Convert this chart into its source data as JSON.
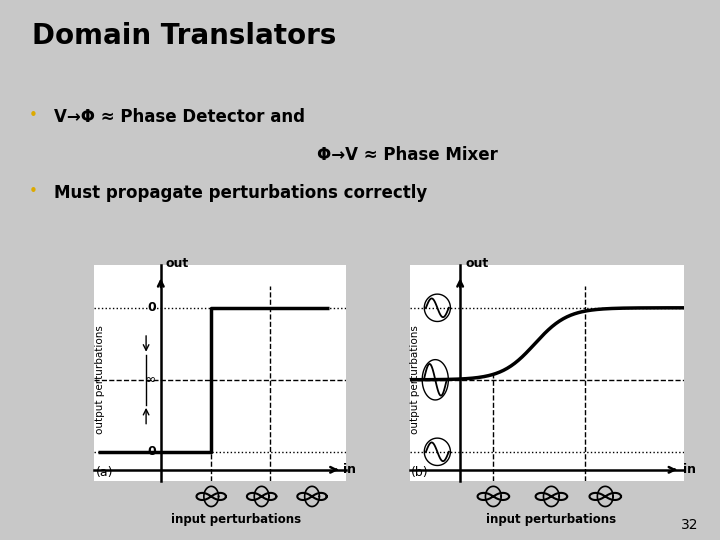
{
  "title": "Domain Translators",
  "bullet1_part1": "V→Φ ≈ Phase Detector and",
  "bullet1_part2": "Φ→V ≈ Phase Mixer",
  "bullet2": "Must propagate perturbations correctly",
  "background_color": "#c8c8c8",
  "plot_bg": "#ffffff",
  "text_color": "#000000",
  "title_color": "#000000",
  "bullet_color": "#ddaa00",
  "fig_label_a": "(a)",
  "fig_label_b": "(b)",
  "xlabel": "in",
  "ylabel": "output perturbations",
  "xlabel_bottom": "input perturbations",
  "page_num": "32"
}
